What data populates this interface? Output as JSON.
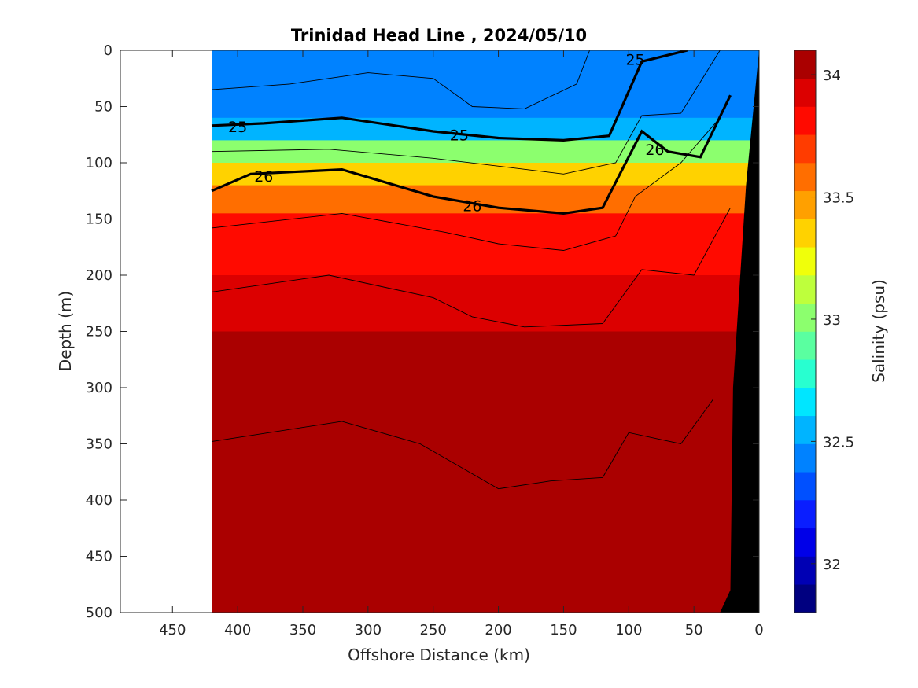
{
  "chart_data": {
    "type": "contour",
    "title": "Trinidad Head Line , 2024/05/10",
    "xlabel": "Offshore Distance (km)",
    "ylabel": "Depth (m)",
    "xlim": [
      490,
      0
    ],
    "ylim": [
      500,
      0
    ],
    "x_ticks": [
      "450",
      "400",
      "350",
      "300",
      "250",
      "200",
      "150",
      "100",
      "50",
      "0"
    ],
    "y_ticks": [
      "0",
      "50",
      "100",
      "150",
      "200",
      "250",
      "300",
      "350",
      "400",
      "450",
      "500"
    ],
    "colorbar": {
      "label": "Salinity (psu)",
      "range": [
        31.8,
        34.1
      ],
      "ticks": [
        "32",
        "32.5",
        "33",
        "33.5",
        "34"
      ],
      "colormap": [
        "#000080",
        "#0000b4",
        "#0000e8",
        "#0a1eff",
        "#0050ff",
        "#0082ff",
        "#00b4ff",
        "#00e6ff",
        "#28ffd0",
        "#5affa0",
        "#8cff6e",
        "#beff3c",
        "#f0ff0a",
        "#ffd200",
        "#ffa000",
        "#ff6e00",
        "#ff3c00",
        "#ff0a00",
        "#dc0000",
        "#aa0000"
      ]
    },
    "section_west_edge_km": 420,
    "salinity_profiles": [
      {
        "depth": 0,
        "salinity": 32.45
      },
      {
        "depth": 60,
        "salinity": 32.6
      },
      {
        "depth": 80,
        "salinity": 33.0
      },
      {
        "depth": 100,
        "salinity": 33.35
      },
      {
        "depth": 120,
        "salinity": 33.6
      },
      {
        "depth": 145,
        "salinity": 33.85
      },
      {
        "depth": 200,
        "salinity": 33.92
      },
      {
        "depth": 250,
        "salinity": 34.0
      },
      {
        "depth": 400,
        "salinity": 34.03
      },
      {
        "depth": 500,
        "salinity": 34.08
      }
    ],
    "isopycnals": [
      {
        "label": "25",
        "points": [
          [
            420,
            67
          ],
          [
            380,
            65
          ],
          [
            320,
            60
          ],
          [
            250,
            72
          ],
          [
            200,
            78
          ],
          [
            150,
            80
          ],
          [
            115,
            76
          ],
          [
            90,
            10
          ],
          [
            55,
            0
          ]
        ],
        "label_positions": [
          [
            400,
            68
          ],
          [
            230,
            75
          ],
          [
            95,
            8
          ]
        ]
      },
      {
        "label": "26",
        "points": [
          [
            420,
            125
          ],
          [
            390,
            110
          ],
          [
            320,
            106
          ],
          [
            250,
            130
          ],
          [
            200,
            140
          ],
          [
            150,
            145
          ],
          [
            120,
            140
          ],
          [
            90,
            72
          ],
          [
            70,
            90
          ],
          [
            45,
            95
          ],
          [
            22,
            40
          ]
        ],
        "label_positions": [
          [
            380,
            112
          ],
          [
            220,
            138
          ],
          [
            80,
            88
          ]
        ]
      }
    ],
    "thin_isopycnals": [
      [
        [
          420,
          35
        ],
        [
          360,
          30
        ],
        [
          300,
          20
        ],
        [
          250,
          25
        ],
        [
          220,
          50
        ],
        [
          180,
          52
        ],
        [
          140,
          30
        ],
        [
          130,
          0
        ]
      ],
      [
        [
          420,
          90
        ],
        [
          330,
          88
        ],
        [
          250,
          96
        ],
        [
          150,
          110
        ],
        [
          110,
          100
        ],
        [
          90,
          58
        ],
        [
          60,
          56
        ],
        [
          30,
          0
        ]
      ],
      [
        [
          420,
          158
        ],
        [
          320,
          145
        ],
        [
          240,
          162
        ],
        [
          200,
          172
        ],
        [
          150,
          178
        ],
        [
          110,
          165
        ],
        [
          95,
          130
        ],
        [
          60,
          100
        ],
        [
          30,
          60
        ]
      ],
      [
        [
          420,
          215
        ],
        [
          330,
          200
        ],
        [
          250,
          220
        ],
        [
          220,
          237
        ],
        [
          180,
          246
        ],
        [
          120,
          243
        ],
        [
          90,
          195
        ],
        [
          50,
          200
        ],
        [
          22,
          140
        ]
      ],
      [
        [
          420,
          348
        ],
        [
          320,
          330
        ],
        [
          260,
          350
        ],
        [
          200,
          390
        ],
        [
          160,
          383
        ],
        [
          120,
          380
        ],
        [
          100,
          340
        ],
        [
          60,
          350
        ],
        [
          35,
          310
        ]
      ]
    ],
    "bathymetry_km": [
      [
        30,
        500
      ],
      [
        22,
        480
      ],
      [
        20,
        300
      ],
      [
        10,
        120
      ],
      [
        0,
        0
      ]
    ]
  }
}
